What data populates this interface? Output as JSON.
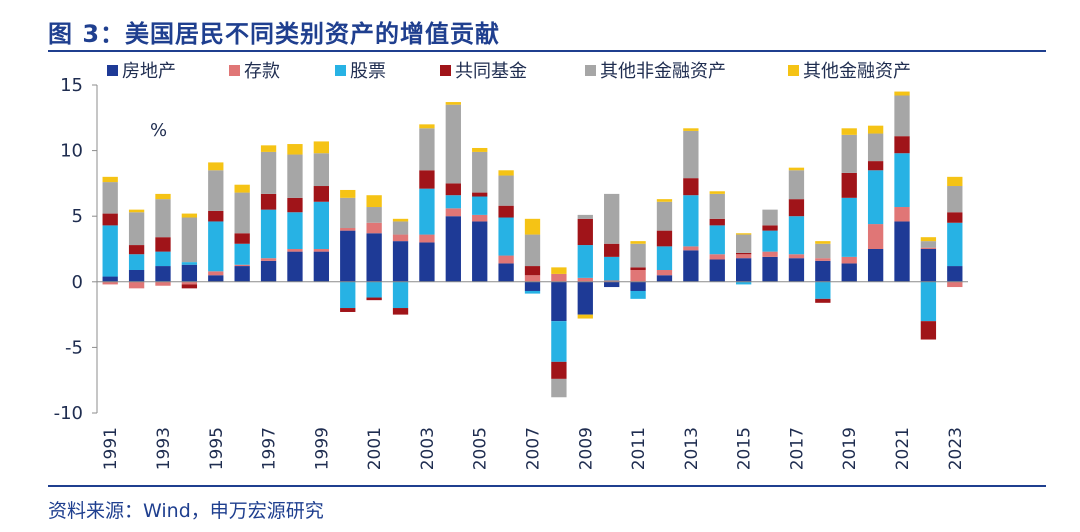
{
  "header": {
    "title": "图 3：美国居民不同类别资产的增值贡献"
  },
  "footer": {
    "source": "资料来源：Wind，申万宏源研究"
  },
  "chart_data": {
    "type": "bar",
    "stacked": true,
    "unit_label": "%",
    "ylim": [
      -10,
      15
    ],
    "yticks": [
      -10,
      -5,
      0,
      5,
      10,
      15
    ],
    "grid": false,
    "legend_position": "top",
    "categories": [
      "1991",
      "1992",
      "1993",
      "1994",
      "1995",
      "1996",
      "1997",
      "1998",
      "1999",
      "2000",
      "2001",
      "2002",
      "2003",
      "2004",
      "2005",
      "2006",
      "2007",
      "2008",
      "2009",
      "2010",
      "2011",
      "2012",
      "2013",
      "2014",
      "2015",
      "2016",
      "2017",
      "2018",
      "2019",
      "2020",
      "2021",
      "2022",
      "2023"
    ],
    "xtick_labels": [
      "1991",
      "",
      "1993",
      "",
      "1995",
      "",
      "1997",
      "",
      "1999",
      "",
      "2001",
      "",
      "2003",
      "",
      "2005",
      "",
      "2007",
      "",
      "2009",
      "",
      "2011",
      "",
      "2013",
      "",
      "2015",
      "",
      "2017",
      "",
      "2019",
      "",
      "2021",
      "",
      "2023"
    ],
    "series": [
      {
        "name": "房地产",
        "color": "#1e3a96",
        "values": [
          0.4,
          0.9,
          1.2,
          1.3,
          0.5,
          1.2,
          1.6,
          2.3,
          2.3,
          3.9,
          3.7,
          3.1,
          3.0,
          5.0,
          4.6,
          1.4,
          -0.7,
          -3.0,
          -2.5,
          -0.4,
          -0.7,
          0.5,
          2.4,
          1.7,
          1.8,
          1.9,
          1.8,
          1.6,
          1.4,
          2.5,
          4.6,
          2.5,
          1.2
        ]
      },
      {
        "name": "存款",
        "color": "#e07676",
        "values": [
          -0.2,
          -0.5,
          -0.3,
          -0.2,
          0.3,
          0.1,
          0.2,
          0.2,
          0.2,
          0.2,
          0.8,
          0.5,
          0.6,
          0.6,
          0.5,
          0.6,
          0.5,
          0.6,
          0.3,
          0.1,
          0.9,
          0.4,
          0.3,
          0.4,
          0.3,
          0.4,
          0.3,
          0.2,
          0.5,
          1.9,
          1.1,
          0.1,
          -0.4
        ]
      },
      {
        "name": "股票",
        "color": "#27b2e4",
        "values": [
          3.9,
          1.2,
          1.1,
          0.2,
          3.8,
          1.6,
          3.7,
          2.8,
          3.6,
          -2.0,
          -1.2,
          -2.0,
          3.5,
          1.0,
          1.4,
          2.9,
          -0.2,
          -3.1,
          2.5,
          1.8,
          -0.6,
          1.8,
          3.9,
          2.2,
          -0.2,
          1.6,
          2.9,
          -1.3,
          4.5,
          4.1,
          4.1,
          -3.0,
          3.3
        ]
      },
      {
        "name": "共同基金",
        "color": "#a01419",
        "values": [
          0.9,
          0.7,
          1.1,
          -0.3,
          0.8,
          0.8,
          1.2,
          1.1,
          1.2,
          -0.3,
          -0.2,
          -0.5,
          1.4,
          0.9,
          0.3,
          0.9,
          0.7,
          -1.3,
          2.0,
          1.0,
          0.2,
          1.2,
          1.3,
          0.5,
          0.1,
          0.4,
          1.3,
          -0.3,
          1.9,
          0.7,
          1.3,
          -1.4,
          0.8
        ]
      },
      {
        "name": "其他非金融资产",
        "color": "#a6a6a6",
        "values": [
          2.4,
          2.5,
          2.9,
          3.4,
          3.1,
          3.1,
          3.2,
          3.3,
          2.5,
          2.3,
          1.2,
          1.0,
          3.2,
          6.0,
          3.1,
          2.3,
          2.4,
          -1.4,
          0.3,
          3.8,
          1.8,
          2.2,
          3.6,
          1.9,
          1.4,
          1.2,
          2.2,
          1.1,
          2.9,
          2.1,
          3.1,
          0.5,
          2.0
        ]
      },
      {
        "name": "其他金融资产",
        "color": "#f5c315",
        "values": [
          0.4,
          0.2,
          0.4,
          0.3,
          0.6,
          0.6,
          0.5,
          0.8,
          0.9,
          0.6,
          0.9,
          0.2,
          0.3,
          0.2,
          0.3,
          0.4,
          1.2,
          0.5,
          -0.3,
          0.0,
          0.2,
          0.2,
          0.2,
          0.2,
          0.1,
          0.0,
          0.2,
          0.2,
          0.5,
          0.6,
          0.3,
          0.3,
          0.7
        ]
      }
    ]
  }
}
